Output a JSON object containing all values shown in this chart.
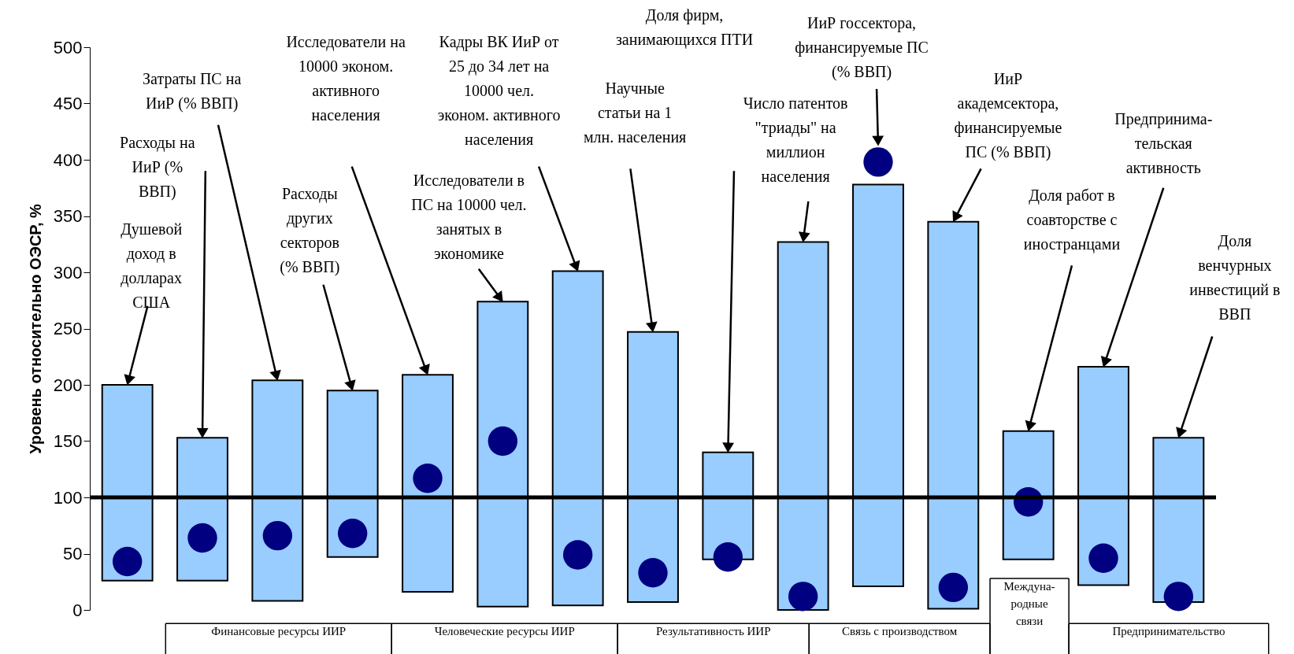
{
  "chart_data": {
    "type": "bar",
    "categories": [
      null,
      null,
      null,
      null,
      null,
      null,
      null,
      null,
      null,
      null,
      null,
      null,
      null,
      null,
      null
    ],
    "series": [
      {
        "type": "bar",
        "color": "#99ccff",
        "base": [
          26,
          26,
          8,
          47,
          16,
          3,
          4,
          7,
          45,
          0,
          21,
          1,
          45,
          22,
          7
        ],
        "values": [
          174,
          127,
          196,
          148,
          193,
          271,
          297,
          240,
          95,
          327,
          357,
          344,
          114,
          194,
          146
        ]
      },
      {
        "type": "scatter",
        "color": "#000080",
        "values": [
          43,
          64,
          66,
          68,
          117,
          150,
          49,
          33,
          47,
          12,
          398,
          20,
          96,
          46,
          12
        ]
      }
    ],
    "ylabel": "Уровень относительно ОЭСР, %",
    "ylim": [
      0,
      500
    ],
    "yticks": [
      0,
      50,
      100,
      150,
      200,
      250,
      300,
      350,
      400,
      450,
      500
    ],
    "ref_lines": [
      {
        "axis": "y",
        "value": 100,
        "color": "#000000"
      }
    ],
    "grid": false,
    "marker": "circle",
    "annotations": [
      "Душевой доход в долларах США",
      "Расходы на ИиР (% ВВП)",
      "Затраты ПС на ИиР (% ВВП)",
      "Расходы других секторов (% ВВП)",
      "Исследователи на 10000 эконом. активного населения",
      "Исследователи в ПС на 10000 чел. занятых в экономике",
      "Кадры ВК ИиР от 25 до 34 лет на 10000 чел. эконом. активного населения",
      "Научные статьи на 1 млн. населения",
      "Доля фирм, занимающихся ПТИ",
      "Число патентов \"триады\" на миллион населения",
      "ИиР госсектора, финансируемые ПС (% ВВП)",
      "ИиР академсектора, финансируемые ПС (% ВВП)",
      "Доля работ в соавторстве с иностранцами",
      "Предпринима- тельская активность",
      "Доля венчурных инвестиций в ВВП",
      "Финансовые ресурсы ИИР",
      "Человеческие ресурсы ИИР",
      "Результативность ИИР",
      "Связь с производством",
      "Междуна- родные связи",
      "Предпринимательство"
    ]
  }
}
